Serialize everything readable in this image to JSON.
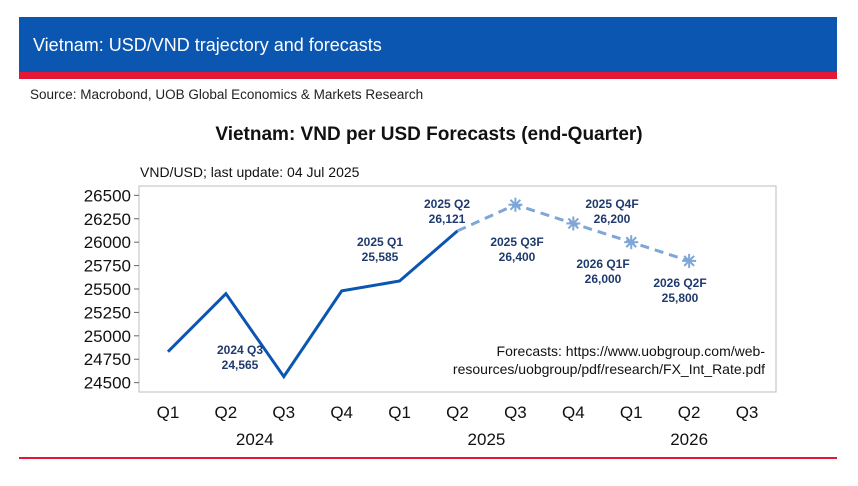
{
  "header": {
    "title": "Vietnam: USD/VND trajectory and forecasts",
    "source": "Source: Macrobond, UOB Global Economics & Markets Research"
  },
  "colors": {
    "banner": "#0b56b0",
    "stripe": "#e31837",
    "actual_line": "#0b56b0",
    "forecast_line": "#7ea6d6",
    "label_text": "#1f3a6e"
  },
  "chart_data": {
    "type": "line",
    "title": "Vietnam: VND per USD Forecasts (end-Quarter)",
    "unit_note": "VND/USD; last update: 04 Jul 2025",
    "ylim": [
      24400,
      26600
    ],
    "yticks": [
      24500,
      24750,
      25000,
      25250,
      25500,
      25750,
      26000,
      26250,
      26500
    ],
    "ytick_labels": [
      "24500",
      "24750",
      "25000",
      "25250",
      "25500",
      "25750",
      "26000",
      "26250",
      "26500"
    ],
    "categories": [
      "Q1",
      "Q2",
      "Q3",
      "Q4",
      "Q1",
      "Q2",
      "Q3",
      "Q4",
      "Q1",
      "Q2",
      "Q3"
    ],
    "year_groups": [
      {
        "label": "2024",
        "start": 0,
        "end": 3
      },
      {
        "label": "2025",
        "start": 4,
        "end": 7
      },
      {
        "label": "2026",
        "start": 8,
        "end": 10
      }
    ],
    "grid": false,
    "series": [
      {
        "kind": "actual",
        "x": [
          "2024 Q1",
          "2024 Q2",
          "2024 Q3",
          "2024 Q4",
          "2025 Q1",
          "2025 Q2"
        ],
        "index": [
          0,
          1,
          2,
          3,
          4,
          5
        ],
        "values": [
          24830,
          25450,
          24565,
          25480,
          25585,
          26121
        ]
      },
      {
        "kind": "forecast",
        "x": [
          "2025 Q2",
          "2025 Q3F",
          "2025 Q4F",
          "2026 Q1F",
          "2026 Q2F"
        ],
        "index": [
          5,
          6,
          7,
          8,
          9
        ],
        "values": [
          26121,
          26400,
          26200,
          26000,
          25800
        ]
      }
    ],
    "annotations": [
      {
        "name": "2024 Q3",
        "value": "24,565",
        "anchor": "2024 Q3"
      },
      {
        "name": "2025 Q1",
        "value": "25,585",
        "anchor": "2025 Q1"
      },
      {
        "name": "2025 Q2",
        "value": "26,121",
        "anchor": "2025 Q2"
      },
      {
        "name": "2025 Q3F",
        "value": "26,400",
        "anchor": "2025 Q3F"
      },
      {
        "name": "2025 Q4F",
        "value": "26,200",
        "anchor": "2025 Q4F"
      },
      {
        "name": "2026 Q1F",
        "value": "26,000",
        "anchor": "2026 Q1F"
      },
      {
        "name": "2026 Q2F",
        "value": "25,800",
        "anchor": "2026 Q2F"
      }
    ],
    "footnote_lines": [
      "Forecasts: https://www.uobgroup.com/web-",
      "resources/uobgroup/pdf/research/FX_Int_Rate.pdf"
    ]
  }
}
